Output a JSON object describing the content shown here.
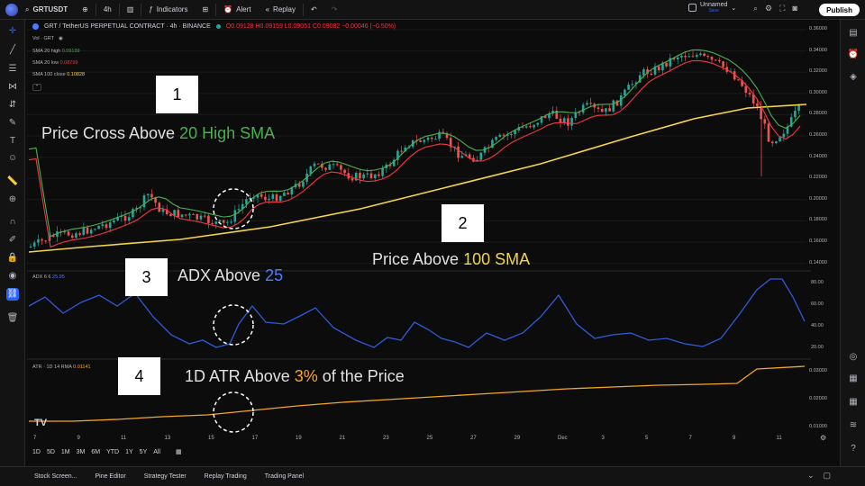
{
  "topbar": {
    "symbol": "GRTUSDT",
    "interval": "4h",
    "indicators": "Indicators",
    "alert": "Alert",
    "replay": "Replay",
    "layout_name": "Unnamed",
    "save_label": "Save",
    "publish": "Publish"
  },
  "chart": {
    "title": "GRT / TetherUS PERPETUAL CONTRACT · 4h · BINANCE",
    "ohlc": "O0.09128 H0.09159 L0.09051 C0.09082 −0.00046 (−0.50%)",
    "volume_label": "Vol · GRT",
    "legend": [
      {
        "name": "SMA 20 high",
        "value": "0.09199",
        "color": "#4caf50"
      },
      {
        "name": "SMA 20 low",
        "value": "0.08799",
        "color": "#f23645"
      },
      {
        "name": "SMA 100 close",
        "value": "0.10828",
        "color": "#f5d547"
      }
    ],
    "adx_label": "ADX 6 6",
    "adx_value": "25.95",
    "atr_label": "ATR · 1D 14 RMA",
    "atr_value": "0.01141"
  },
  "annotations": [
    {
      "number": "1",
      "text_a": "Price Cross Above ",
      "text_b": "20 High SMA"
    },
    {
      "number": "2",
      "text_a": "Price Above ",
      "text_b": "100 SMA"
    },
    {
      "number": "3",
      "text_a": "ADX Above ",
      "text_b": "25"
    },
    {
      "number": "4",
      "text_a": "1D ATR Above ",
      "text_b": "3%",
      "text_c": " of the Price"
    }
  ],
  "price_axis": [
    "0.36000",
    "0.34000",
    "0.32000",
    "0.30000",
    "0.28000",
    "0.26000",
    "0.24000",
    "0.22000",
    "0.20000",
    "0.18000",
    "0.16000",
    "0.14000"
  ],
  "adx_axis": [
    "80.00",
    "60.00",
    "40.00",
    "20.00"
  ],
  "atr_axis": [
    "0.03000",
    "0.02000",
    "0.01000"
  ],
  "x_axis": [
    "7",
    "9",
    "11",
    "13",
    "15",
    "17",
    "19",
    "21",
    "23",
    "25",
    "27",
    "29",
    "Dec",
    "3",
    "5",
    "7",
    "9",
    "11"
  ],
  "ranges": [
    "1D",
    "5D",
    "1M",
    "3M",
    "6M",
    "YTD",
    "1Y",
    "5Y",
    "All"
  ],
  "bottom_tabs": [
    "Stock Screen...",
    "Pine Editor",
    "Strategy Tester",
    "Replay Trading",
    "Trading Panel"
  ],
  "colors": {
    "up": "#26a69a",
    "down": "#ef5350",
    "sma_high": "#4caf50",
    "sma_low": "#f23645",
    "sma100": "#f5d547",
    "adx": "#2f5bd8",
    "atr": "#f5a623"
  }
}
